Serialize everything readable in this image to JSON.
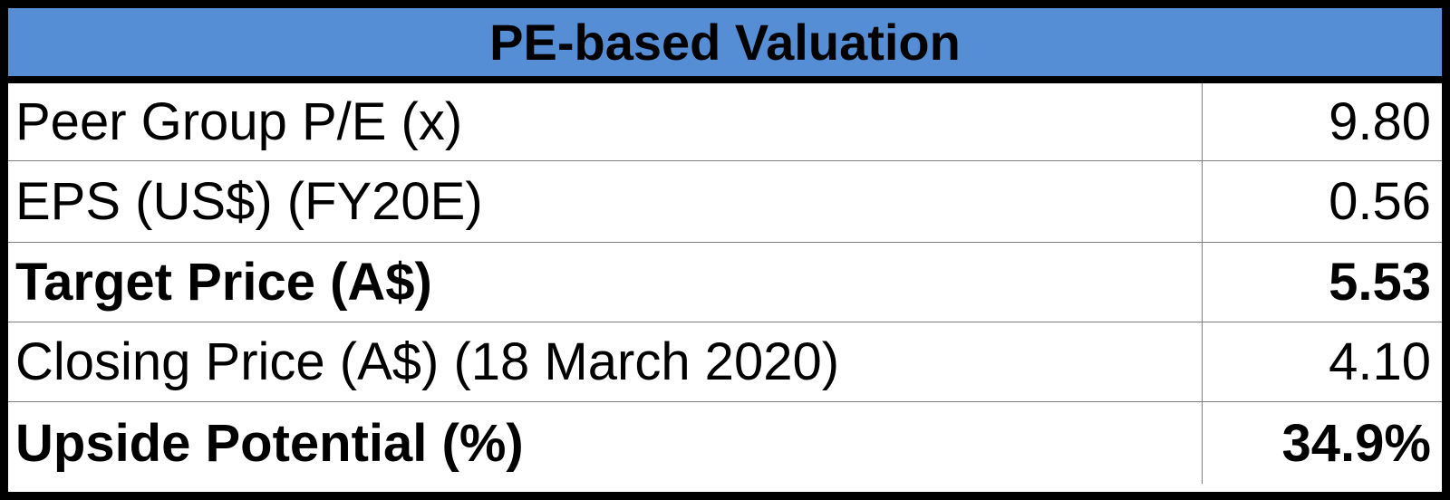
{
  "table": {
    "title": "PE-based Valuation",
    "header_color": "#558ED5",
    "rows": [
      {
        "label": "Peer Group P/E (x)",
        "value": "9.80",
        "bold": false
      },
      {
        "label": "EPS (US$) (FY20E)",
        "value": "0.56",
        "bold": false
      },
      {
        "label": "Target Price (A$)",
        "value": "5.53",
        "bold": true
      },
      {
        "label": "Closing Price (A$) (18 March 2020)",
        "value": "4.10",
        "bold": false
      },
      {
        "label": "Upside Potential (%)",
        "value": "34.9%",
        "bold": true
      }
    ]
  }
}
